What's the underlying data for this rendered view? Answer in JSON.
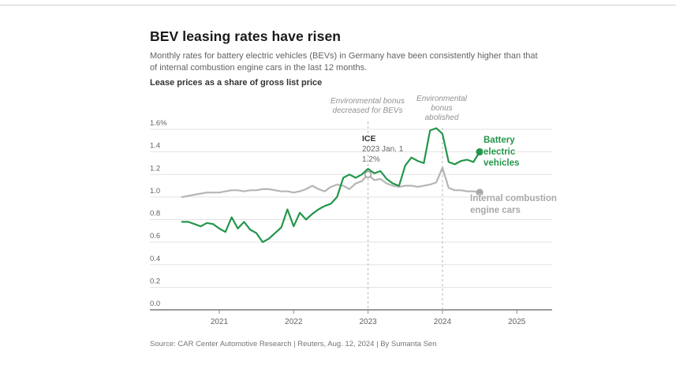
{
  "header": {
    "title": "BEV leasing rates have risen",
    "subtitle_lines": [
      "Monthly rates for battery electric vehicles (BEVs) in Germany have been consistently higher than that",
      "of internal combustion engine cars in the last 12 months."
    ],
    "axis_heading": "Lease prices as a share of gross list price"
  },
  "annotations": {
    "bonus_decreased": {
      "line1": "Environmental bonus",
      "line2": "decreased for BEVs"
    },
    "bonus_abolished": {
      "line1": "Environmental",
      "line2": "bonus",
      "line3": "abolished"
    },
    "ice_callout": {
      "line1": "ICE",
      "line2": "2023 Jan. 1",
      "line3": "1.2%"
    }
  },
  "legend": {
    "bev": {
      "line1": "Battery",
      "line2": "electric",
      "line3": "vehicles"
    },
    "ice": {
      "line1": "Internal combustion",
      "line2": "engine cars"
    }
  },
  "source": "Source: CAR Center Automotive Research | Reuters, Aug. 12, 2024 | By Sumanta Sen",
  "colors": {
    "bev_green": "#23964a",
    "ice_gray": "#b5b5b5",
    "ice_label_gray": "#a8a8a8",
    "grid": "#e3e3e3",
    "axis": "#7a7a7a",
    "dashed_event_line": "#b8b8b8",
    "tick_label": "#636363"
  },
  "chart_data": {
    "type": "line",
    "title": "Lease prices as a share of gross list price",
    "x_unit": "month",
    "x_start": "2020-07",
    "x_end": "2024-07",
    "n_points": 49,
    "xticks": [
      "2021",
      "2022",
      "2023",
      "2024",
      "2025"
    ],
    "yticks": [
      "1.6%",
      "1.4",
      "1.2",
      "1.0",
      "0.8",
      "0.6",
      "0.4",
      "0.2",
      "0.0"
    ],
    "ylim": [
      0,
      1.6
    ],
    "grid": "horizontal",
    "legend_position": "right-of-line-ends",
    "event_lines": [
      {
        "x": "2023-01",
        "label": "Environmental bonus decreased for BEVs"
      },
      {
        "x": "2024-01",
        "label": "Environmental bonus abolished"
      }
    ],
    "callout": {
      "x": "2023-01",
      "series": "ICE",
      "value": 1.2,
      "text": "ICE 2023 Jan. 1 1.2%"
    },
    "series": [
      {
        "name": "Battery electric vehicles",
        "color": "#23964a",
        "end_dot": true,
        "values": [
          0.78,
          0.78,
          0.76,
          0.74,
          0.77,
          0.76,
          0.72,
          0.69,
          0.82,
          0.72,
          0.78,
          0.71,
          0.68,
          0.6,
          0.63,
          0.68,
          0.73,
          0.89,
          0.74,
          0.86,
          0.8,
          0.85,
          0.89,
          0.92,
          0.94,
          1.0,
          1.17,
          1.2,
          1.17,
          1.2,
          1.25,
          1.21,
          1.23,
          1.16,
          1.12,
          1.1,
          1.28,
          1.35,
          1.32,
          1.3,
          1.59,
          1.61,
          1.56,
          1.31,
          1.29,
          1.32,
          1.33,
          1.31,
          1.4
        ]
      },
      {
        "name": "Internal combustion engine cars",
        "color": "#b5b5b5",
        "end_dot": true,
        "values": [
          1.0,
          1.01,
          1.02,
          1.03,
          1.04,
          1.04,
          1.04,
          1.05,
          1.06,
          1.06,
          1.05,
          1.06,
          1.06,
          1.07,
          1.07,
          1.06,
          1.05,
          1.05,
          1.04,
          1.05,
          1.07,
          1.1,
          1.07,
          1.05,
          1.09,
          1.11,
          1.1,
          1.07,
          1.12,
          1.14,
          1.2,
          1.15,
          1.16,
          1.12,
          1.1,
          1.09,
          1.1,
          1.1,
          1.09,
          1.1,
          1.11,
          1.13,
          1.26,
          1.08,
          1.06,
          1.06,
          1.05,
          1.05,
          1.04
        ]
      }
    ]
  }
}
